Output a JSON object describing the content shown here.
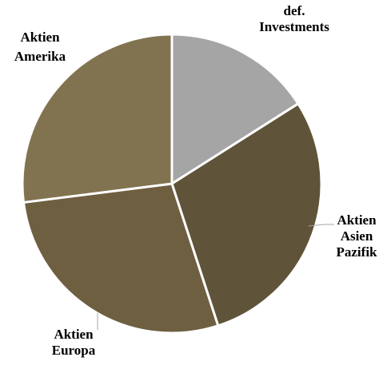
{
  "chart_data": {
    "type": "pie",
    "slices": [
      {
        "label": "def. Investments",
        "label_lines": [
          "def.",
          "Investments"
        ],
        "value": 16,
        "color": "#a5a5a5"
      },
      {
        "label": "Aktien Asien Pazifik",
        "label_lines": [
          "Aktien",
          "Asien",
          "Pazifik"
        ],
        "value": 29,
        "color": "#5f5339"
      },
      {
        "label": "Aktien Europa",
        "label_lines": [
          "Aktien",
          "Europa"
        ],
        "value": 28,
        "color": "#6f5f41"
      },
      {
        "label": "Aktien Amerika",
        "label_lines": [
          "Aktien",
          "Amerika"
        ],
        "value": 27,
        "color": "#827350"
      }
    ],
    "start_angle_deg": 0,
    "direction": "clockwise",
    "legend": "none",
    "data_labels": "category name outside with leader lines"
  }
}
